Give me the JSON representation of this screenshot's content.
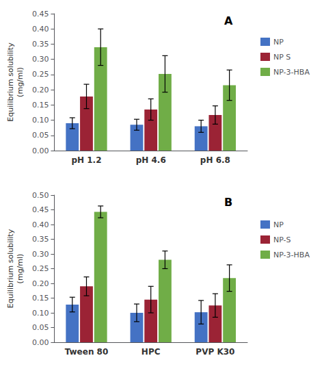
{
  "chart_data": [
    {
      "type": "bar",
      "categories": [
        "pH 1.2",
        "pH 4.6",
        "pH 6.8"
      ],
      "series": [
        {
          "name": "NP",
          "color": "#4472C4",
          "values": [
            0.09,
            0.085,
            0.08
          ],
          "errors": [
            0.018,
            0.018,
            0.02
          ]
        },
        {
          "name": "NP S",
          "color": "#9B2335",
          "values": [
            0.178,
            0.135,
            0.117
          ],
          "errors": [
            0.04,
            0.035,
            0.03
          ]
        },
        {
          "name": "NP-3-HBA",
          "color": "#70AD47",
          "values": [
            0.34,
            0.252,
            0.215
          ],
          "errors": [
            0.06,
            0.06,
            0.05
          ]
        }
      ],
      "ylabel": "Equilibrium solubility\n(mg/ml)",
      "ylim": [
        0,
        0.45
      ],
      "yticks": [
        {
          "value": 0,
          "label": "0.00"
        },
        0.05,
        {
          "value": 0.1,
          "label": "0.10"
        },
        0.15,
        {
          "value": 0.2,
          "label": "0.20"
        },
        0.25,
        {
          "value": 0.3,
          "label": "0.30"
        },
        0.35,
        {
          "value": 0.4,
          "label": "0.40"
        },
        0.45
      ],
      "annotation": "A",
      "legend": "right",
      "grid": false
    },
    {
      "type": "bar",
      "categories": [
        "Tween 80",
        "HPC",
        "PVP K30"
      ],
      "series": [
        {
          "name": "NP",
          "color": "#4472C4",
          "values": [
            0.128,
            0.1,
            0.102
          ],
          "errors": [
            0.025,
            0.03,
            0.04
          ]
        },
        {
          "name": "NP-S",
          "color": "#9B2335",
          "values": [
            0.19,
            0.145,
            0.125
          ],
          "errors": [
            0.032,
            0.045,
            0.04
          ]
        },
        {
          "name": "NP-3-HBA",
          "color": "#70AD47",
          "values": [
            0.443,
            0.28,
            0.218
          ],
          "errors": [
            0.02,
            0.03,
            0.045
          ]
        }
      ],
      "ylabel": "Equilibrium solubility\n(mg/ml)",
      "ylim": [
        0,
        0.5
      ],
      "yticks": [
        {
          "value": 0,
          "label": "0.00"
        },
        0.05,
        {
          "value": 0.1,
          "label": "0.10"
        },
        0.15,
        {
          "value": 0.2,
          "label": "0.20"
        },
        0.25,
        {
          "value": 0.3,
          "label": "0.30"
        },
        0.35,
        {
          "value": 0.4,
          "label": "0.40"
        },
        0.45,
        {
          "value": 0.5,
          "label": "0.50"
        }
      ],
      "annotation": "B",
      "legend": "right",
      "grid": false
    }
  ]
}
